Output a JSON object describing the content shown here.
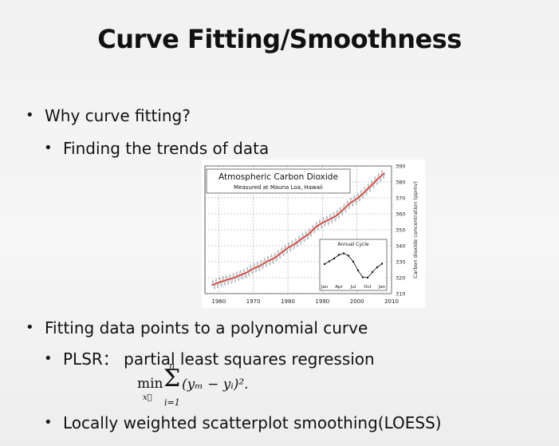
{
  "slide": {
    "title": "Curve Fitting/Smoothness",
    "bullets": [
      "Why curve fitting?",
      "Finding the trends of data",
      "Fitting data points to a polynomial curve",
      "PLSR： partial least squares regression",
      "Locally weighted scatterplot smoothing(LOESS)"
    ],
    "bullet_symbol": "•",
    "formula": {
      "min": "min",
      "var": "x⃗",
      "sum_upper": "n",
      "sum_lower": "i=1",
      "sigma": "Σ",
      "body": "(yₘ − yᵢ)²."
    }
  },
  "chart_data": {
    "type": "line",
    "title": "Atmospheric Carbon Dioxide",
    "subtitle": "Measured at Mauna Loa, Hawaii",
    "xlabel": "",
    "ylabel": "Carbon dioxide concentration (ppmv)",
    "xlim": [
      1956,
      2010
    ],
    "ylim": [
      310,
      390
    ],
    "xticks": [
      1960,
      1970,
      1980,
      1990,
      2000,
      2010
    ],
    "yticks": [
      310,
      320,
      330,
      340,
      350,
      360,
      370,
      380,
      390
    ],
    "grid": true,
    "series": [
      {
        "color": "#d93a2b",
        "x": [
          1958,
          1960,
          1962,
          1964,
          1966,
          1968,
          1970,
          1972,
          1974,
          1976,
          1978,
          1980,
          1982,
          1984,
          1986,
          1988,
          1990,
          1992,
          1994,
          1996,
          1998,
          2000,
          2002,
          2004,
          2006,
          2008
        ],
        "values": [
          315.3,
          316.9,
          318.4,
          319.6,
          321.4,
          323.1,
          325.7,
          327.5,
          330.2,
          332.1,
          335.4,
          338.7,
          341.1,
          344.4,
          347.2,
          351.6,
          354.4,
          356.4,
          358.8,
          362.6,
          366.7,
          369.5,
          373.2,
          377.5,
          381.9,
          385.6
        ]
      }
    ],
    "seasonal_amplitude": 3,
    "inset": {
      "title": "Annual Cycle",
      "categories": [
        "Jan",
        "Apr",
        "Jul",
        "Oct",
        "Jan"
      ],
      "months": [
        1,
        2,
        3,
        4,
        5,
        6,
        7,
        8,
        9,
        10,
        11,
        12,
        13
      ],
      "values": [
        0.2,
        0.9,
        1.6,
        2.5,
        2.9,
        2.3,
        0.8,
        -1.4,
        -3.1,
        -3.2,
        -1.8,
        -0.6,
        0.3
      ]
    }
  }
}
